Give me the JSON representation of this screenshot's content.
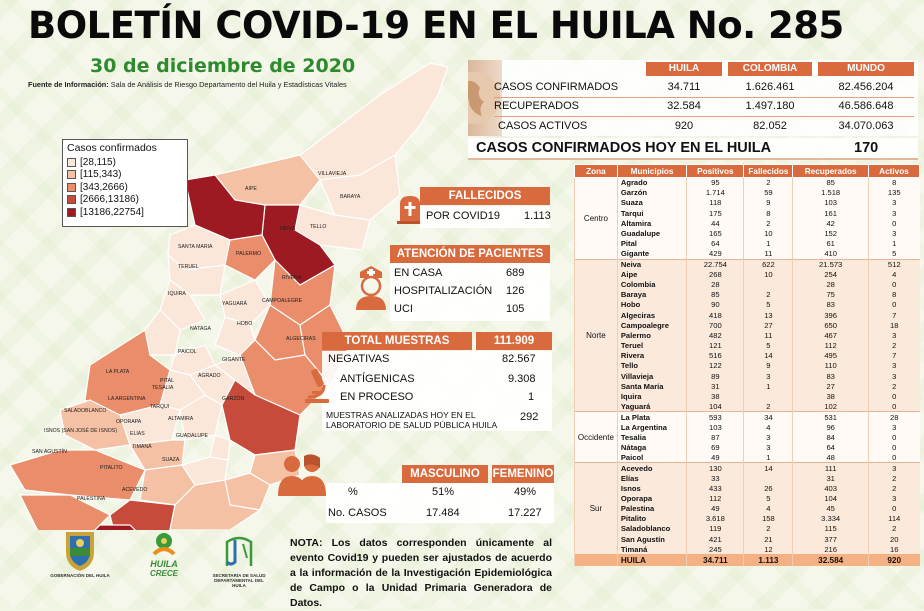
{
  "header": {
    "title": "BOLETÍN COVID-19 EN EL HUILA No. 285",
    "date": "30 de diciembre de 2020",
    "source_label": "Fuente de Información:",
    "source_text": "Sala de Análisis de Riesgo Departamento del Huila y Estadísticas Vitales"
  },
  "summary": {
    "columns": [
      "HUILA",
      "COLOMBIA",
      "MUNDO"
    ],
    "rows": [
      {
        "label": "CASOS CONFIRMADOS",
        "values": [
          "34.711",
          "1.626.461",
          "82.456.204"
        ]
      },
      {
        "label": "RECUPERADOS",
        "values": [
          "32.584",
          "1.497.180",
          "46.586.648"
        ]
      },
      {
        "label": "CASOS ACTIVOS",
        "values": [
          "920",
          "82.052",
          "34.070.063"
        ]
      }
    ],
    "today_label": "CASOS CONFIRMADOS  HOY EN EL HUILA",
    "today_value": "170"
  },
  "legend": {
    "title": "Casos confirmados",
    "items": [
      {
        "label": "[28,115)",
        "color": "#fbe6da"
      },
      {
        "label": "[115,343)",
        "color": "#f4c1a4"
      },
      {
        "label": "[343,2666)",
        "color": "#e98d6a"
      },
      {
        "label": "[2666,13186)",
        "color": "#c64b3a"
      },
      {
        "label": "[13186,22754]",
        "color": "#9e1a22"
      }
    ]
  },
  "map_labels": [
    "VILLAVIEJA",
    "BARAYA",
    "TELLO",
    "AIPE",
    "NEIVA",
    "SANTA MARIA",
    "PALERMO",
    "TERUEL",
    "RIVERA",
    "IQUIRA",
    "CAMPOALEGRE",
    "YAGUARÁ",
    "HOBO",
    "NÁTAGA",
    "ALGECIRAS",
    "PAICOL",
    "GIGANTE",
    "LA PLATA",
    "TESALIA",
    "PITAL",
    "AGRADO",
    "LA ARGENTINA",
    "GARZÓN",
    "TARQUI",
    "SALADOBLANCO",
    "OPORAPA",
    "ALTAMIRA",
    "ISNOS (SAN JOSÉ DE ISNOS)",
    "ELÍAS",
    "GUADALUPE",
    "SAN AGUSTÍN",
    "TIMANÁ",
    "SUAZA",
    "PITALITO",
    "ACEVEDO",
    "PALESTINA"
  ],
  "deaths": {
    "title": "FALLECIDOS",
    "label": "POR COVID19",
    "value": "1.113"
  },
  "attention": {
    "title": "ATENCIÓN DE PACIENTES",
    "rows": [
      {
        "label": "EN CASA",
        "value": "689"
      },
      {
        "label": "HOSPITALIZACIÓN",
        "value": "126"
      },
      {
        "label": "UCI",
        "value": "105"
      }
    ]
  },
  "samples": {
    "title": "TOTAL MUESTRAS",
    "total": "111.909",
    "rows": [
      {
        "label": "NEGATIVAS",
        "value": "82.567"
      },
      {
        "label": "ANTÍGENICAS",
        "value": "9.308"
      },
      {
        "label": "EN PROCESO",
        "value": "1"
      }
    ],
    "lab_label": "MUESTRAS ANALIZADAS HOY EN EL LABORATORIO DE SALUD PÚBLICA HUILA",
    "lab_value": "292"
  },
  "gender": {
    "male_label": "MASCULINO",
    "female_label": "FEMENINO",
    "pct_label": "%",
    "pct_male": "51%",
    "pct_female": "49%",
    "cases_label": "No. CASOS",
    "cases_male": "17.484",
    "cases_female": "17.227"
  },
  "note": "NOTA: Los datos corresponden únicamente al evento Covid19 y pueden ser ajustados de acuerdo a la información de la Investigación Epidemiológica de Campo o la Unidad Primaria Generadora de Datos.",
  "logos": {
    "gov": "GOBERNACIÓN DEL HUILA",
    "crece_1": "HUILA",
    "crece_2": "CRECE",
    "health": "SECRETARÍA DE SALUD DEPARTAMENTAL DEL HUILA"
  },
  "table": {
    "headers": [
      "Zona",
      "Municipios",
      "Positivos",
      "Fallecidos",
      "Recuperados",
      "Activos"
    ],
    "zones": [
      {
        "zone": "Centro",
        "rows": [
          [
            "Agrado",
            "95",
            "2",
            "85",
            "8"
          ],
          [
            "Garzón",
            "1.714",
            "59",
            "1.518",
            "135"
          ],
          [
            "Suaza",
            "118",
            "9",
            "103",
            "3"
          ],
          [
            "Tarqui",
            "175",
            "8",
            "161",
            "3"
          ],
          [
            "Altamira",
            "44",
            "2",
            "42",
            "0"
          ],
          [
            "Guadalupe",
            "165",
            "10",
            "152",
            "3"
          ],
          [
            "Pital",
            "64",
            "1",
            "61",
            "1"
          ],
          [
            "Gigante",
            "429",
            "11",
            "410",
            "5"
          ]
        ]
      },
      {
        "zone": "Norte",
        "rows": [
          [
            "Neiva",
            "22.754",
            "622",
            "21.573",
            "512"
          ],
          [
            "Aipe",
            "268",
            "10",
            "254",
            "4"
          ],
          [
            "Colombia",
            "28",
            "",
            "28",
            "0"
          ],
          [
            "Baraya",
            "85",
            "2",
            "75",
            "8"
          ],
          [
            "Hobo",
            "90",
            "5",
            "83",
            "0"
          ],
          [
            "Algeciras",
            "418",
            "13",
            "396",
            "7"
          ],
          [
            "Campoalegre",
            "700",
            "27",
            "650",
            "18"
          ],
          [
            "Palermo",
            "482",
            "11",
            "467",
            "3"
          ],
          [
            "Teruel",
            "121",
            "5",
            "112",
            "2"
          ],
          [
            "Rivera",
            "516",
            "14",
            "495",
            "7"
          ],
          [
            "Tello",
            "122",
            "9",
            "110",
            "3"
          ],
          [
            "Villavieja",
            "89",
            "3",
            "83",
            "3"
          ],
          [
            "Santa María",
            "31",
            "1",
            "27",
            "2"
          ],
          [
            "Iquira",
            "38",
            "",
            "38",
            "0"
          ],
          [
            "Yaguará",
            "104",
            "2",
            "102",
            "0"
          ]
        ]
      },
      {
        "zone": "Occidente",
        "rows": [
          [
            "La Plata",
            "593",
            "34",
            "531",
            "28"
          ],
          [
            "La Argentina",
            "103",
            "4",
            "96",
            "3"
          ],
          [
            "Tesalia",
            "87",
            "3",
            "84",
            "0"
          ],
          [
            "Nátaga",
            "69",
            "3",
            "64",
            "0"
          ],
          [
            "Paicol",
            "49",
            "1",
            "48",
            "0"
          ]
        ]
      },
      {
        "zone": "Sur",
        "rows": [
          [
            "Acevedo",
            "130",
            "14",
            "111",
            "3"
          ],
          [
            "Elías",
            "33",
            "",
            "31",
            "2"
          ],
          [
            "Isnos",
            "433",
            "26",
            "403",
            "2"
          ],
          [
            "Oporapa",
            "112",
            "5",
            "104",
            "3"
          ],
          [
            "Palestina",
            "49",
            "4",
            "45",
            "0"
          ],
          [
            "Pitalito",
            "3.618",
            "158",
            "3.334",
            "114"
          ],
          [
            "Saladoblanco",
            "119",
            "2",
            "115",
            "2"
          ],
          [
            "San Agustín",
            "421",
            "21",
            "377",
            "20"
          ],
          [
            "Timaná",
            "245",
            "12",
            "216",
            "16"
          ]
        ]
      }
    ],
    "total": [
      "HUILA",
      "34.711",
      "1.113",
      "32.584",
      "920"
    ]
  }
}
